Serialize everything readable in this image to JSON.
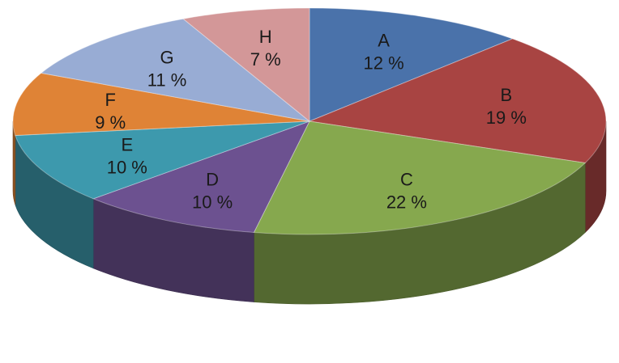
{
  "chart_data": {
    "type": "pie",
    "style": "3d",
    "slices": [
      {
        "label": "A",
        "value": 12,
        "value_text": "12 %",
        "color": "#4a72aa"
      },
      {
        "label": "B",
        "value": 19,
        "value_text": "19 %",
        "color": "#a84442"
      },
      {
        "label": "C",
        "value": 22,
        "value_text": "22 %",
        "color": "#86a84e"
      },
      {
        "label": "D",
        "value": 10,
        "value_text": "10 %",
        "color": "#6c5190"
      },
      {
        "label": "E",
        "value": 10,
        "value_text": "10 %",
        "color": "#3d99ad"
      },
      {
        "label": "F",
        "value": 9,
        "value_text": "9 %",
        "color": "#df8336"
      },
      {
        "label": "G",
        "value": 11,
        "value_text": "11 %",
        "color": "#98acd4"
      },
      {
        "label": "H",
        "value": 7,
        "value_text": "7 %",
        "color": "#d39798"
      }
    ],
    "legend": "none"
  }
}
